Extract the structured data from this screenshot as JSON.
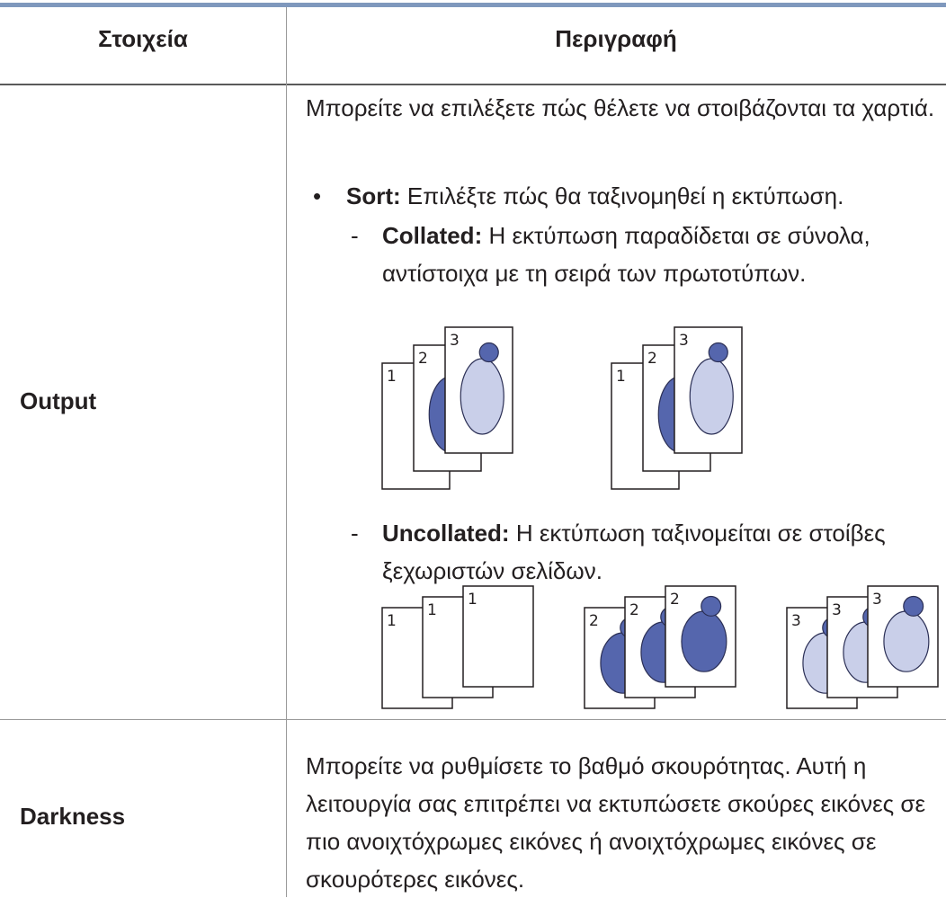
{
  "table": {
    "headers": [
      "Στοιχεία",
      "Περιγραφή"
    ],
    "rows": [
      {
        "item": "Output",
        "description": "Μπορείτε να επιλέξετε πώς θέλετε να στοιβάζονται τα χαρτιά.",
        "bullets": [
          {
            "term": "Sort:",
            "text": "Επιλέξτε πώς θα ταξινομηθεί η εκτύπωση.",
            "subitems": [
              {
                "term": "Collated:",
                "text": "Η εκτύπωση παραδίδεται σε σύνολα, αντίστοιχα με τη σειρά των πρωτοτύπων.",
                "figure": {
                  "stacks": [
                    [
                      "1",
                      "2",
                      "3"
                    ],
                    [
                      "1",
                      "2",
                      "3"
                    ]
                  ]
                }
              },
              {
                "term": "Uncollated:",
                "text": "Η εκτύπωση ταξινομείται σε στοίβες ξεχωριστών σελίδων.",
                "figure": {
                  "stacks": [
                    [
                      "1",
                      "1",
                      "1"
                    ],
                    [
                      "2",
                      "2",
                      "2"
                    ],
                    [
                      "3",
                      "3",
                      "3"
                    ]
                  ]
                }
              }
            ]
          }
        ]
      },
      {
        "item": "Darkness",
        "description": "Μπορείτε να ρυθμίσετε το βαθμό σκουρότητας. Αυτή η λειτουργία σας επιτρέπει να εκτυπώσετε σκούρες εικόνες σε πιο ανοιχτόχρωμες εικόνες ή ανοιχτόχρωμες εικόνες σε σκουρότερες εικόνες."
      }
    ]
  }
}
